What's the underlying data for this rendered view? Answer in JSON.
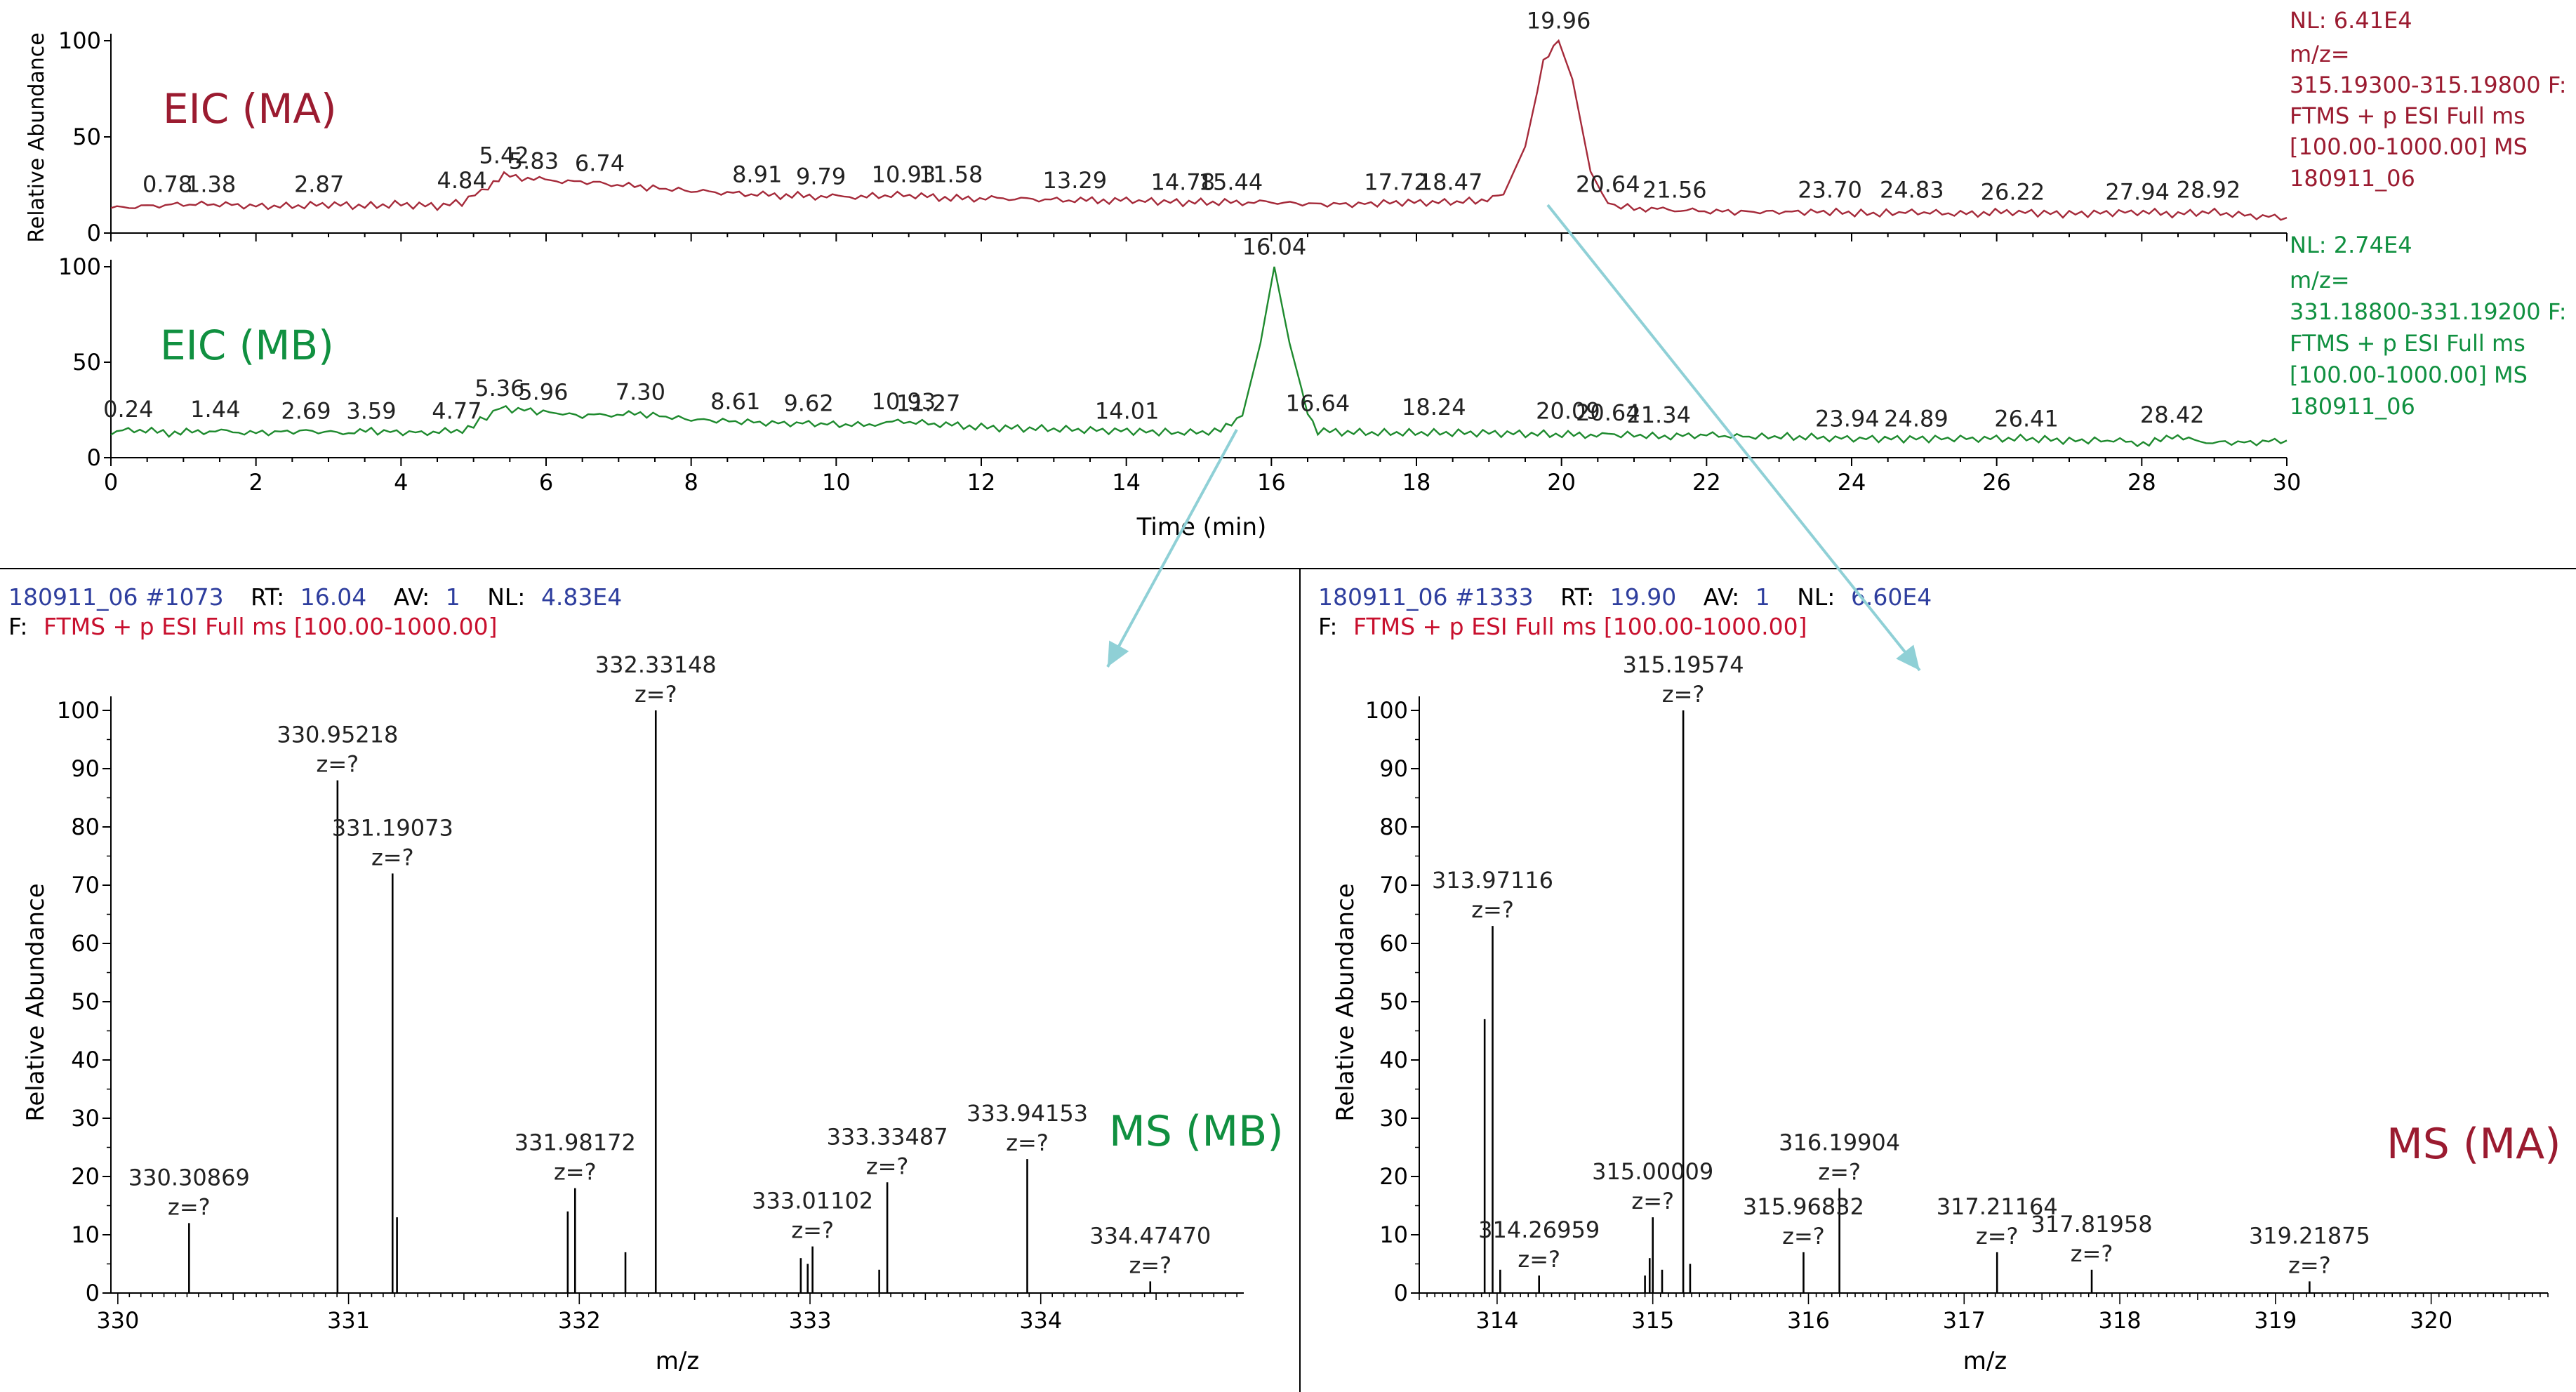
{
  "colors": {
    "ma": "#9b1b30",
    "mb": "#109040",
    "eic_ma_line": "#a52a3a",
    "eic_mb_line": "#1e8a2e",
    "peak_label_green": "#3cb04a",
    "header_blue": "#2e3e9e",
    "header_red": "#c8102e",
    "arrow": "#8fd0d6",
    "axis": "#000000"
  },
  "eic_ma": {
    "title": "EIC (MA)",
    "ylabel": "Relative Abundance",
    "info_lines": [
      "NL: 6.41E4",
      "m/z=",
      "315.19300-315.19800 F:",
      "FTMS + p ESI Full ms",
      "[100.00-1000.00]  MS",
      "180911_06"
    ]
  },
  "eic_mb": {
    "title": "EIC (MB)",
    "xlabel": "Time (min)",
    "info_lines": [
      "NL: 2.74E4",
      "m/z=",
      "331.18800-331.19200 F:",
      "FTMS + p ESI Full ms",
      "[100.00-1000.00]  MS",
      "180911_06"
    ]
  },
  "ms_mb": {
    "title": "MS (MB)",
    "ylabel": "Relative Abundance",
    "xlabel": "m/z",
    "header": {
      "file": "180911_06 #1073",
      "rt_label": "RT:",
      "rt": "16.04",
      "av_label": "AV:",
      "av": "1",
      "nl_label": "NL:",
      "nl": "4.83E4"
    },
    "filter": {
      "prefix": "F:",
      "text": "FTMS + p ESI Full ms [100.00-1000.00]"
    }
  },
  "ms_ma": {
    "title": "MS (MA)",
    "ylabel": "Relative Abundance",
    "xlabel": "m/z",
    "header": {
      "file": "180911_06 #1333",
      "rt_label": "RT:",
      "rt": "19.90",
      "av_label": "AV:",
      "av": "1",
      "nl_label": "NL:",
      "nl": "6.60E4"
    },
    "filter": {
      "prefix": "F:",
      "text": "FTMS + p ESI Full ms [100.00-1000.00]"
    }
  },
  "chart_data": [
    {
      "type": "line",
      "id": "eic_ma",
      "title": "EIC (MA)",
      "ylabel": "Relative Abundance",
      "xlim": [
        0,
        30
      ],
      "ylim": [
        0,
        100
      ],
      "yticks": [
        0,
        50,
        100
      ],
      "xticks": [
        0,
        2,
        4,
        6,
        8,
        10,
        12,
        14,
        16,
        18,
        20,
        22,
        24,
        26,
        28,
        30
      ],
      "show_xtick_labels": false,
      "series": [
        {
          "x": [
            0,
            0.5,
            1,
            1.5,
            2,
            2.5,
            3,
            3.5,
            4,
            4.5,
            4.84,
            5.2,
            5.42,
            5.83,
            6.3,
            6.74,
            7.3,
            8,
            8.91,
            9.79,
            10.5,
            10.93,
            11.58,
            12.3,
            13.29,
            14,
            14.78,
            15.44,
            16,
            16.6,
            17.2,
            17.72,
            18.47,
            18.9,
            19.2,
            19.5,
            19.75,
            19.96,
            20.15,
            20.4,
            20.64,
            21,
            21.56,
            22.3,
            23,
            23.7,
            24.3,
            24.83,
            25.5,
            26.22,
            27,
            27.94,
            28.5,
            28.92,
            29.5,
            30
          ],
          "y": [
            13,
            14,
            15,
            15,
            14,
            14,
            15,
            14,
            15,
            14,
            16,
            24,
            30,
            28,
            27,
            26,
            24,
            22,
            20,
            19,
            19,
            20,
            18,
            18,
            17,
            17,
            16,
            16,
            16,
            15,
            15,
            16,
            16,
            17,
            20,
            45,
            88,
            100,
            80,
            32,
            15,
            13,
            12,
            11,
            11,
            11,
            10,
            11,
            10,
            11,
            10,
            11,
            10,
            11,
            9,
            8
          ]
        }
      ],
      "peak_labels": [
        {
          "x": 0.78,
          "y": 17,
          "label": "0.78"
        },
        {
          "x": 1.38,
          "y": 17,
          "label": "1.38"
        },
        {
          "x": 2.87,
          "y": 17,
          "label": "2.87"
        },
        {
          "x": 4.84,
          "y": 19,
          "label": "4.84"
        },
        {
          "x": 5.42,
          "y": 32,
          "label": "5.42"
        },
        {
          "x": 5.83,
          "y": 29,
          "label": "5.83"
        },
        {
          "x": 6.74,
          "y": 28,
          "label": "6.74"
        },
        {
          "x": 8.91,
          "y": 22,
          "label": "8.91"
        },
        {
          "x": 9.79,
          "y": 21,
          "label": "9.79"
        },
        {
          "x": 10.93,
          "y": 22,
          "label": "10.93"
        },
        {
          "x": 11.58,
          "y": 22,
          "label": "11.58"
        },
        {
          "x": 13.29,
          "y": 19,
          "label": "13.29"
        },
        {
          "x": 14.78,
          "y": 18,
          "label": "14.78"
        },
        {
          "x": 15.44,
          "y": 18,
          "label": "15.44"
        },
        {
          "x": 17.72,
          "y": 18,
          "label": "17.72"
        },
        {
          "x": 18.47,
          "y": 18,
          "label": "18.47"
        },
        {
          "x": 19.96,
          "y": 102,
          "label": "19.96"
        },
        {
          "x": 20.64,
          "y": 17,
          "label": "20.64"
        },
        {
          "x": 21.56,
          "y": 14,
          "label": "21.56"
        },
        {
          "x": 23.7,
          "y": 14,
          "label": "23.70"
        },
        {
          "x": 24.83,
          "y": 14,
          "label": "24.83"
        },
        {
          "x": 26.22,
          "y": 13,
          "label": "26.22"
        },
        {
          "x": 27.94,
          "y": 13,
          "label": "27.94"
        },
        {
          "x": 28.92,
          "y": 14,
          "label": "28.92"
        }
      ]
    },
    {
      "type": "line",
      "id": "eic_mb",
      "title": "EIC (MB)",
      "xlabel": "Time (min)",
      "xlim": [
        0,
        30
      ],
      "ylim": [
        0,
        100
      ],
      "yticks": [
        0,
        50,
        100
      ],
      "xticks": [
        0,
        2,
        4,
        6,
        8,
        10,
        12,
        14,
        16,
        18,
        20,
        22,
        24,
        26,
        28,
        30
      ],
      "series": [
        {
          "x": [
            0,
            0.24,
            0.8,
            1.44,
            2,
            2.69,
            3.2,
            3.59,
            4.2,
            4.77,
            5,
            5.36,
            5.7,
            5.96,
            6.5,
            7.3,
            8,
            8.61,
            9.2,
            9.62,
            10.3,
            10.93,
            11.27,
            12,
            13,
            14.01,
            14.8,
            15.3,
            15.6,
            15.85,
            16.04,
            16.25,
            16.5,
            16.64,
            17.3,
            18.24,
            19,
            20.09,
            20.64,
            21,
            21.34,
            22,
            22.5,
            23.2,
            23.94,
            24.89,
            25.5,
            26.41,
            27,
            27.7,
            28.1,
            28.42,
            28.8,
            29.5,
            30
          ],
          "y": [
            12,
            15,
            13,
            14,
            13,
            14,
            13,
            14,
            13,
            14,
            17,
            26,
            25,
            24,
            22,
            23,
            20,
            19,
            18,
            18,
            17,
            19,
            18,
            16,
            15,
            14,
            13,
            14,
            22,
            60,
            100,
            60,
            24,
            14,
            13,
            13,
            13,
            12,
            12,
            12,
            11,
            12,
            11,
            11,
            10,
            10,
            10,
            10,
            9,
            9,
            7,
            12,
            8,
            8,
            9
          ]
        }
      ],
      "peak_labels": [
        {
          "x": 0.24,
          "y": 17,
          "label": "0.24"
        },
        {
          "x": 1.44,
          "y": 17,
          "label": "1.44"
        },
        {
          "x": 2.69,
          "y": 16,
          "label": "2.69"
        },
        {
          "x": 3.59,
          "y": 16,
          "label": "3.59"
        },
        {
          "x": 4.77,
          "y": 16,
          "label": "4.77"
        },
        {
          "x": 5.36,
          "y": 28,
          "label": "5.36"
        },
        {
          "x": 5.96,
          "y": 26,
          "label": "5.96"
        },
        {
          "x": 7.3,
          "y": 26,
          "label": "7.30"
        },
        {
          "x": 8.61,
          "y": 21,
          "label": "8.61"
        },
        {
          "x": 9.62,
          "y": 20,
          "label": "9.62"
        },
        {
          "x": 10.93,
          "y": 21,
          "label": "10.93"
        },
        {
          "x": 11.27,
          "y": 20,
          "label": "11.27"
        },
        {
          "x": 14.01,
          "y": 16,
          "label": "14.01"
        },
        {
          "x": 16.04,
          "y": 102,
          "label": "16.04"
        },
        {
          "x": 16.64,
          "y": 20,
          "label": "16.64"
        },
        {
          "x": 18.24,
          "y": 18,
          "label": "18.24"
        },
        {
          "x": 20.09,
          "y": 16,
          "label": "20.09"
        },
        {
          "x": 20.64,
          "y": 15,
          "label": "20.64"
        },
        {
          "x": 21.34,
          "y": 14,
          "label": "21.34"
        },
        {
          "x": 23.94,
          "y": 12,
          "label": "23.94"
        },
        {
          "x": 24.89,
          "y": 12,
          "label": "24.89"
        },
        {
          "x": 26.41,
          "y": 12,
          "label": "26.41"
        },
        {
          "x": 28.42,
          "y": 14,
          "label": "28.42"
        }
      ]
    },
    {
      "type": "bar",
      "id": "ms_mb",
      "title": "MS (MB)",
      "ylabel": "Relative Abundance",
      "xlabel": "m/z",
      "xlim": [
        329.97,
        334.88
      ],
      "ylim": [
        0,
        100
      ],
      "yticks": [
        0,
        10,
        20,
        30,
        40,
        50,
        60,
        70,
        80,
        90,
        100
      ],
      "xticks": [
        330,
        331,
        332,
        333,
        334
      ],
      "peaks": [
        {
          "mz": 330.30869,
          "intensity": 12,
          "label": "330.30869",
          "charge": "z=?"
        },
        {
          "mz": 330.95218,
          "intensity": 88,
          "label": "330.95218",
          "charge": "z=?"
        },
        {
          "mz": 331.19073,
          "intensity": 72,
          "label": "331.19073",
          "charge": "z=?"
        },
        {
          "mz": 331.21,
          "intensity": 13
        },
        {
          "mz": 331.95,
          "intensity": 14
        },
        {
          "mz": 331.98172,
          "intensity": 18,
          "label": "331.98172",
          "charge": "z=?"
        },
        {
          "mz": 332.2,
          "intensity": 7
        },
        {
          "mz": 332.33148,
          "intensity": 100,
          "label": "332.33148",
          "charge": "z=?"
        },
        {
          "mz": 332.96,
          "intensity": 6
        },
        {
          "mz": 332.99,
          "intensity": 5
        },
        {
          "mz": 333.01102,
          "intensity": 8,
          "label": "333.01102",
          "charge": "z=?"
        },
        {
          "mz": 333.3,
          "intensity": 4
        },
        {
          "mz": 333.33487,
          "intensity": 19,
          "label": "333.33487",
          "charge": "z=?"
        },
        {
          "mz": 333.94153,
          "intensity": 23,
          "label": "333.94153",
          "charge": "z=?"
        },
        {
          "mz": 334.4747,
          "intensity": 2,
          "label": "334.47470",
          "charge": "z=?"
        }
      ]
    },
    {
      "type": "bar",
      "id": "ms_ma",
      "title": "MS (MA)",
      "ylabel": "Relative Abundance",
      "xlabel": "m/z",
      "xlim": [
        313.5,
        320.75
      ],
      "ylim": [
        0,
        100
      ],
      "yticks": [
        0,
        10,
        20,
        30,
        40,
        50,
        60,
        70,
        80,
        90,
        100
      ],
      "xticks": [
        314,
        315,
        316,
        317,
        318,
        319,
        320
      ],
      "peaks": [
        {
          "mz": 313.92,
          "intensity": 47
        },
        {
          "mz": 313.97116,
          "intensity": 63,
          "label": "313.97116",
          "charge": "z=?"
        },
        {
          "mz": 314.02,
          "intensity": 4
        },
        {
          "mz": 314.26959,
          "intensity": 3,
          "label": "314.26959",
          "charge": "z=?"
        },
        {
          "mz": 314.95,
          "intensity": 3
        },
        {
          "mz": 314.98,
          "intensity": 6
        },
        {
          "mz": 315.00009,
          "intensity": 13,
          "label": "315.00009",
          "charge": "z=?"
        },
        {
          "mz": 315.06,
          "intensity": 4
        },
        {
          "mz": 315.19574,
          "intensity": 100,
          "label": "315.19574",
          "charge": "z=?"
        },
        {
          "mz": 315.24,
          "intensity": 5
        },
        {
          "mz": 315.96832,
          "intensity": 7,
          "label": "315.96832",
          "charge": "z=?"
        },
        {
          "mz": 316.19904,
          "intensity": 18,
          "label": "316.19904",
          "charge": "z=?"
        },
        {
          "mz": 317.21164,
          "intensity": 7,
          "label": "317.21164",
          "charge": "z=?"
        },
        {
          "mz": 317.81958,
          "intensity": 4,
          "label": "317.81958",
          "charge": "z=?"
        },
        {
          "mz": 319.21875,
          "intensity": 2,
          "label": "319.21875",
          "charge": "z=?"
        }
      ]
    }
  ]
}
